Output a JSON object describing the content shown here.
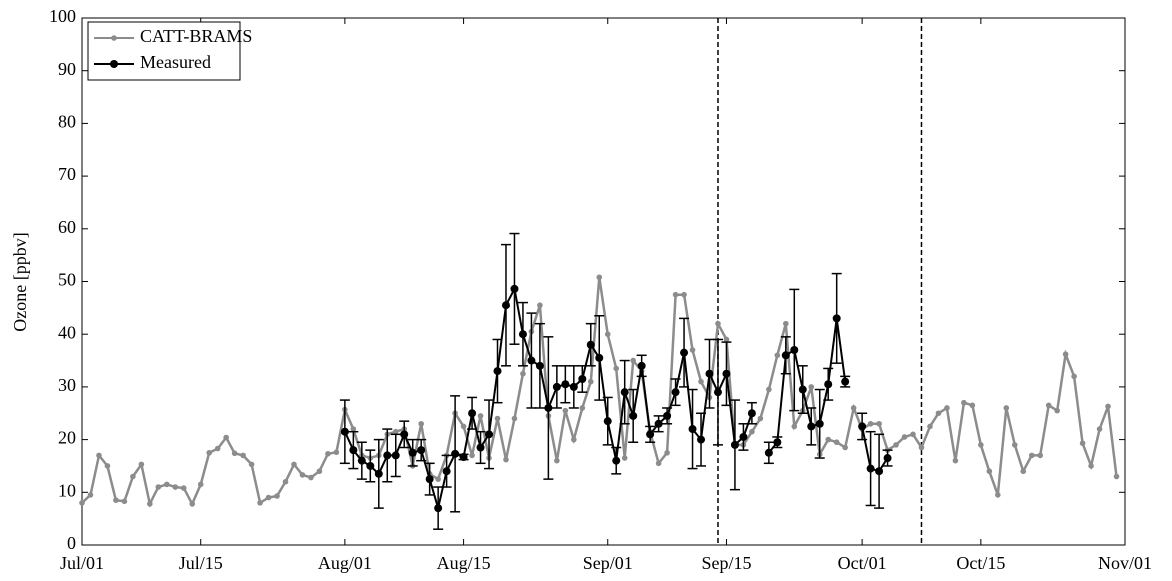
{
  "chart_data": {
    "type": "line",
    "y_label": "Ozone [ppbv]",
    "x": [
      "Jul/01",
      "Jul/02",
      "Jul/03",
      "Jul/04",
      "Jul/05",
      "Jul/06",
      "Jul/07",
      "Jul/08",
      "Jul/09",
      "Jul/10",
      "Jul/11",
      "Jul/12",
      "Jul/13",
      "Jul/14",
      "Jul/15",
      "Jul/16",
      "Jul/17",
      "Jul/18",
      "Jul/19",
      "Jul/20",
      "Jul/21",
      "Jul/22",
      "Jul/23",
      "Jul/24",
      "Jul/25",
      "Jul/26",
      "Jul/27",
      "Jul/28",
      "Jul/29",
      "Jul/30",
      "Jul/31",
      "Aug/01",
      "Aug/02",
      "Aug/03",
      "Aug/04",
      "Aug/05",
      "Aug/06",
      "Aug/07",
      "Aug/08",
      "Aug/09",
      "Aug/10",
      "Aug/11",
      "Aug/12",
      "Aug/13",
      "Aug/14",
      "Aug/15",
      "Aug/16",
      "Aug/17",
      "Aug/18",
      "Aug/19",
      "Aug/20",
      "Aug/21",
      "Aug/22",
      "Aug/23",
      "Aug/24",
      "Aug/25",
      "Aug/26",
      "Aug/27",
      "Aug/28",
      "Aug/29",
      "Aug/30",
      "Aug/31",
      "Sep/01",
      "Sep/02",
      "Sep/03",
      "Sep/04",
      "Sep/05",
      "Sep/06",
      "Sep/07",
      "Sep/08",
      "Sep/09",
      "Sep/10",
      "Sep/11",
      "Sep/12",
      "Sep/13",
      "Sep/14",
      "Sep/15",
      "Sep/16",
      "Sep/17",
      "Sep/18",
      "Sep/19",
      "Sep/20",
      "Sep/21",
      "Sep/22",
      "Sep/23",
      "Sep/24",
      "Sep/25",
      "Sep/26",
      "Sep/27",
      "Sep/28",
      "Sep/29",
      "Sep/30",
      "Oct/01",
      "Oct/02",
      "Oct/03",
      "Oct/04",
      "Oct/05",
      "Oct/06",
      "Oct/07",
      "Oct/08",
      "Oct/09",
      "Oct/10",
      "Oct/11",
      "Oct/12",
      "Oct/13",
      "Oct/14",
      "Oct/15",
      "Oct/16",
      "Oct/17",
      "Oct/18",
      "Oct/19",
      "Oct/20",
      "Oct/21",
      "Oct/22",
      "Oct/23",
      "Oct/24",
      "Oct/25",
      "Oct/26",
      "Oct/27",
      "Oct/28",
      "Oct/29",
      "Oct/30",
      "Oct/31"
    ],
    "series": [
      {
        "name": "CATT-BRAMS",
        "color": "#8c8c8c",
        "values": [
          8,
          9.5,
          17,
          15,
          8.5,
          8.3,
          13,
          15.3,
          7.8,
          11,
          11.5,
          11,
          10.8,
          7.8,
          11.5,
          17.5,
          18.3,
          20.4,
          17.4,
          17,
          15.3,
          8,
          9,
          9.3,
          12,
          15.3,
          13.3,
          12.8,
          14,
          17.3,
          17.6,
          25.7,
          22,
          17,
          16.5,
          17,
          21,
          21.5,
          22,
          15,
          23,
          13.5,
          12.5,
          17,
          25,
          22.5,
          17,
          24.5,
          16.5,
          24,
          16.2,
          24,
          32.5,
          40.5,
          45.5,
          24.5,
          16,
          25.5,
          20,
          26,
          31,
          50.8,
          40,
          33.5,
          16.5,
          35,
          33,
          21.5,
          15.5,
          17.5,
          47.5,
          47.5,
          37,
          31,
          28,
          42,
          39,
          19,
          19,
          21.5,
          24,
          29.5,
          36,
          42,
          22.5,
          25.5,
          30,
          17.2,
          20,
          19.5,
          18.5,
          26,
          22,
          23,
          23,
          18,
          19,
          20.5,
          21,
          18.5,
          22.5,
          25,
          26,
          16,
          27,
          26.5,
          19,
          14,
          9.5,
          26,
          19,
          14,
          17,
          17,
          26.5,
          25.5,
          36.2,
          32,
          19.3,
          15,
          22,
          26.3,
          13
        ]
      },
      {
        "name": "Measured",
        "color": "#000000",
        "values": [
          null,
          null,
          null,
          null,
          null,
          null,
          null,
          null,
          null,
          null,
          null,
          null,
          null,
          null,
          null,
          null,
          null,
          null,
          null,
          null,
          null,
          null,
          null,
          null,
          null,
          null,
          null,
          null,
          null,
          null,
          null,
          21.5,
          18,
          16,
          15,
          13.5,
          17,
          17,
          21,
          17.5,
          18,
          12.5,
          7,
          14,
          17.3,
          16.7,
          25,
          18.5,
          21,
          33,
          45.5,
          48.6,
          40,
          35,
          34,
          26,
          30,
          30.5,
          30,
          31.5,
          38,
          35.5,
          23.5,
          16,
          29,
          24.5,
          34,
          21,
          23,
          24.5,
          29,
          36.5,
          22,
          20,
          32.5,
          29,
          32.5,
          19,
          20.5,
          25,
          null,
          17.5,
          19.5,
          36,
          37,
          29.5,
          22.5,
          23,
          30.5,
          43,
          31,
          null,
          22.5,
          14.5,
          14,
          16.5,
          null,
          null,
          null,
          null,
          null,
          null,
          null,
          null,
          null,
          null,
          null,
          null,
          null,
          null,
          null,
          null,
          null,
          null,
          null,
          null,
          null,
          null,
          null,
          null,
          null,
          null,
          null
        ],
        "errors": [
          null,
          null,
          null,
          null,
          null,
          null,
          null,
          null,
          null,
          null,
          null,
          null,
          null,
          null,
          null,
          null,
          null,
          null,
          null,
          null,
          null,
          null,
          null,
          null,
          null,
          null,
          null,
          null,
          null,
          null,
          null,
          6,
          3.5,
          3.5,
          3,
          6.5,
          5,
          4,
          2.5,
          2.5,
          2,
          3,
          4,
          3,
          11,
          0.5,
          3,
          3,
          6.5,
          6,
          11.5,
          10.5,
          6,
          9,
          8,
          13.5,
          4,
          3.5,
          4,
          2.5,
          4,
          8,
          4.5,
          2.5,
          6,
          5,
          2,
          1.5,
          1.5,
          1.5,
          2.5,
          6.5,
          7.5,
          5,
          6.5,
          10,
          6,
          8.5,
          2.5,
          2,
          null,
          2,
          1,
          3.5,
          11.5,
          4.5,
          3.5,
          6.5,
          3,
          8.5,
          1,
          null,
          2.5,
          7,
          7,
          1.5,
          null,
          null,
          null,
          null,
          null,
          null,
          null,
          null,
          null,
          null,
          null,
          null,
          null,
          null,
          null,
          null,
          null,
          null,
          null,
          null,
          null,
          null,
          null,
          null,
          null,
          null,
          null
        ]
      }
    ],
    "xlim": [
      "Jul/01",
      "Nov/01"
    ],
    "xticks": [
      "Jul/01",
      "Jul/15",
      "Aug/01",
      "Aug/15",
      "Sep/01",
      "Sep/15",
      "Oct/01",
      "Oct/15",
      "Nov/01"
    ],
    "ylim": [
      0,
      100
    ],
    "yticks": [
      0,
      10,
      20,
      30,
      40,
      50,
      60,
      70,
      80,
      90,
      100
    ],
    "vlines": [
      "Sep/14",
      "Oct/08"
    ],
    "legend": "upper left"
  }
}
